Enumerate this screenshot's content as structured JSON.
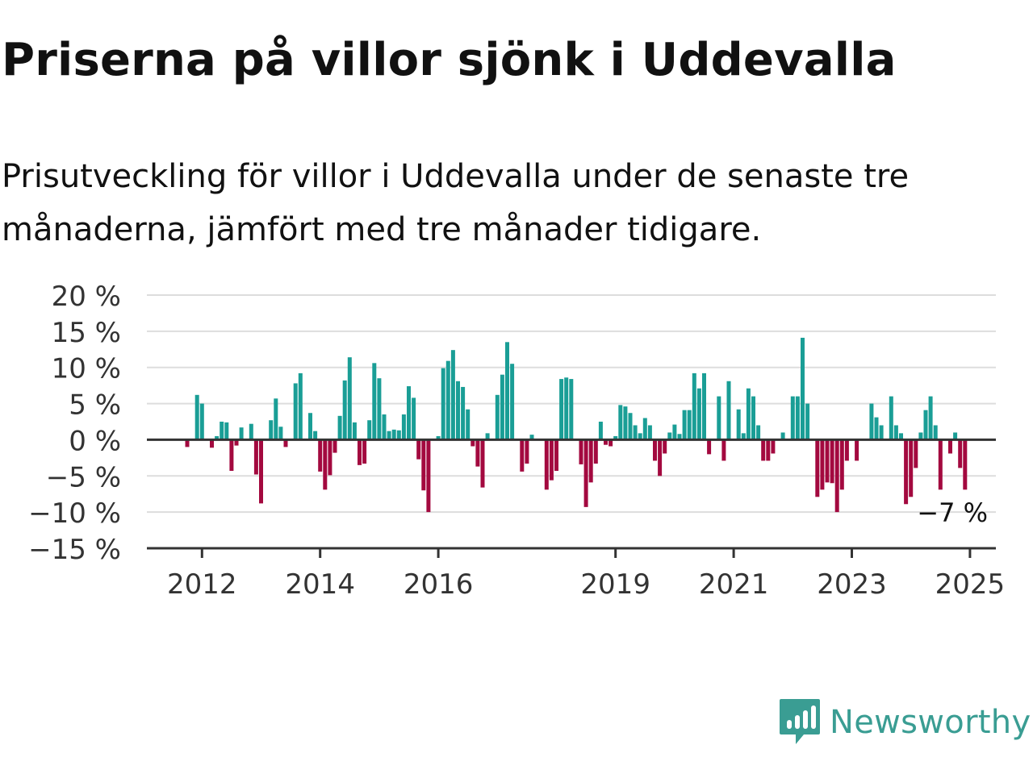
{
  "header": {
    "title": "Priserna på villor sjönk i Uddevalla",
    "subtitle": "Prisutveckling för villor i Uddevalla under de senaste tre månaderna, jämfört med tre månader tidigare."
  },
  "brand": {
    "name": "Newsworthy",
    "icon": "newsworthy-logo-icon",
    "color": "#3a9d93"
  },
  "chart_data": {
    "type": "bar",
    "title": "Priserna på villor sjönk i Uddevalla",
    "subtitle": "Prisutveckling för villor i Uddevalla under de senaste tre månaderna, jämfört med tre månader tidigare.",
    "xlabel": "",
    "ylabel": "",
    "ylim": [
      -15,
      20
    ],
    "y_ticks": [
      20,
      15,
      10,
      5,
      0,
      -5,
      -10,
      -15
    ],
    "y_tick_labels": [
      "20 %",
      "15 %",
      "10 %",
      "5 %",
      "0 %",
      "−5 %",
      "−10 %",
      "−15 %"
    ],
    "x_ticks": [
      2012,
      2014,
      2016,
      2019,
      2021,
      2023,
      2025
    ],
    "x_tick_labels": [
      "2012",
      "2014",
      "2016",
      "2019",
      "2021",
      "2023",
      "2025"
    ],
    "grid": true,
    "colors": {
      "positive": "#1a9e96",
      "negative": "#a3093f",
      "grid": "#dddddd",
      "axis": "#333333"
    },
    "x_start": "2011-10",
    "x_interval": "month",
    "values": [
      -1,
      0,
      6.2,
      5,
      0,
      -1.1,
      0.5,
      2.5,
      2.4,
      -4.3,
      -0.8,
      1.7,
      0,
      2.2,
      -4.8,
      -8.8,
      0,
      2.7,
      5.7,
      1.8,
      -1,
      0,
      7.8,
      9.2,
      0,
      3.7,
      1.2,
      -4.4,
      -6.9,
      -4.9,
      -1.8,
      3.3,
      8.2,
      11.4,
      2.4,
      -3.5,
      -3.3,
      2.7,
      10.6,
      8.5,
      3.5,
      1.2,
      1.4,
      1.3,
      3.5,
      7.4,
      5.8,
      -2.7,
      -7,
      -10,
      0,
      0.5,
      9.9,
      10.9,
      12.4,
      8.1,
      7.3,
      4.2,
      -0.9,
      -3.7,
      -6.6,
      0.9,
      0,
      6.2,
      9,
      13.5,
      10.5,
      0,
      -4.4,
      -3.3,
      0.7,
      0,
      0,
      -6.9,
      -5.6,
      -4.3,
      8.4,
      8.6,
      8.4,
      0,
      -3.4,
      -9.3,
      -5.9,
      -3.3,
      2.5,
      -0.7,
      -0.9,
      0.5,
      4.8,
      4.6,
      3.7,
      2,
      0.9,
      3,
      2,
      -2.9,
      -5,
      -1.9,
      1,
      2.1,
      0.8,
      4.1,
      4.1,
      9.2,
      7.1,
      9.2,
      -2,
      0,
      6,
      -2.9,
      8.1,
      0,
      4.2,
      0.9,
      7.1,
      6,
      2,
      -2.9,
      -2.9,
      -1.9,
      0,
      1,
      0,
      6,
      6,
      14.1,
      5,
      0,
      -7.9,
      -6.9,
      -5.9,
      -6,
      -10,
      -6.9,
      -2.9,
      0,
      -2.9,
      0,
      0,
      5,
      3.1,
      2,
      0,
      6,
      2,
      0.9,
      -8.9,
      -7.9,
      -3.9,
      1,
      4.1,
      6,
      2,
      -6.9,
      0,
      -1.9,
      1,
      -3.9,
      -6.9
    ],
    "last_value_label": "−7 %"
  }
}
